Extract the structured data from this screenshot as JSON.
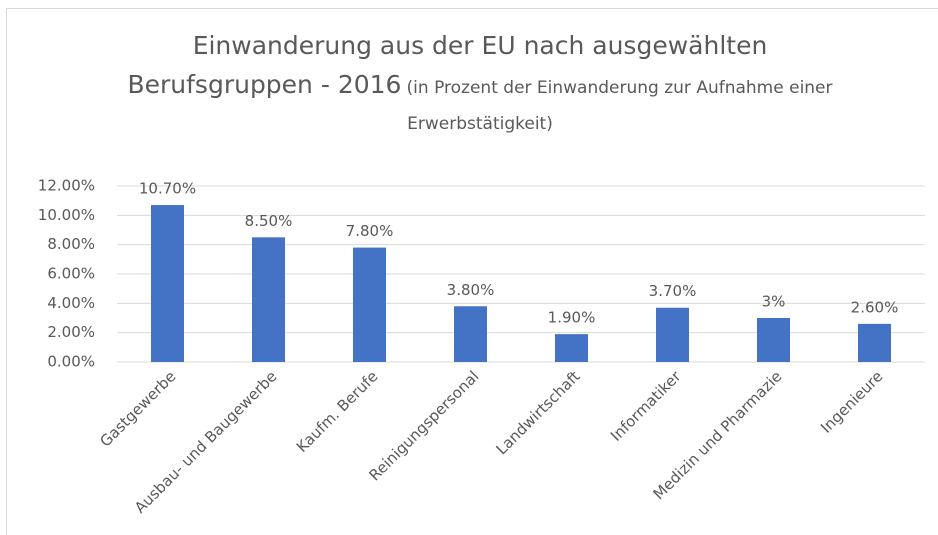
{
  "chart_data": {
    "type": "bar",
    "title": "Einwanderung aus der EU nach ausgewählten Berufsgruppen - 2016",
    "subtitle": "(in Prozent der Einwanderung zur Aufnahme einer Erwerbstätigkeit)",
    "categories": [
      "Gastgewerbe",
      "Ausbau- und Baugewerbe",
      "Kaufm. Berufe",
      "Reinigungspersonal",
      "Landwirtschaft",
      "Informatiker",
      "Medizin und Pharmazie",
      "Ingenieure"
    ],
    "values": [
      10.7,
      8.5,
      7.8,
      3.8,
      1.9,
      3.7,
      3,
      2.6
    ],
    "value_labels": [
      "10.70%",
      "8.50%",
      "7.80%",
      "3.80%",
      "1.90%",
      "3.70%",
      "3%",
      "2.60%"
    ],
    "color": "#4472c4",
    "ylim": [
      0,
      12
    ],
    "yticks": [
      {
        "value": 0,
        "label": "0.00%"
      },
      {
        "value": 2,
        "label": "2.00%"
      },
      {
        "value": 4,
        "label": "4.00%"
      },
      {
        "value": 6,
        "label": "6.00%"
      },
      {
        "value": 8,
        "label": "8.00%"
      },
      {
        "value": 10,
        "label": "10.00%"
      },
      {
        "value": 12,
        "label": "12.00%"
      }
    ],
    "grid": true
  }
}
